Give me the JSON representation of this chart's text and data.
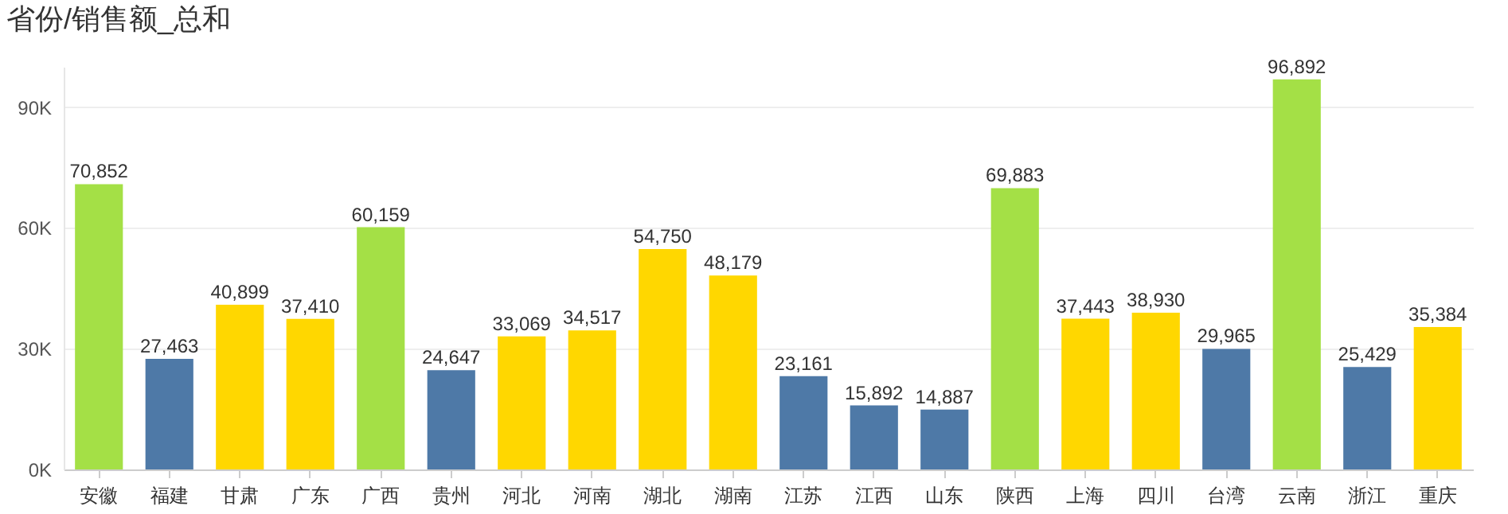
{
  "chart_data": {
    "type": "bar",
    "title": "省份/销售额_总和",
    "categories": [
      "安徽",
      "福建",
      "甘肃",
      "广东",
      "广西",
      "贵州",
      "河北",
      "河南",
      "湖北",
      "湖南",
      "江苏",
      "江西",
      "山东",
      "陕西",
      "上海",
      "四川",
      "台湾",
      "云南",
      "浙江",
      "重庆"
    ],
    "values": [
      70852,
      27463,
      40899,
      37410,
      60159,
      24647,
      33069,
      34517,
      54750,
      48179,
      23161,
      15892,
      14887,
      69883,
      37443,
      38930,
      29965,
      96892,
      25429,
      35384
    ],
    "colors": [
      "#a4e046",
      "#4e79a7",
      "#ffd700",
      "#ffd700",
      "#a4e046",
      "#4e79a7",
      "#ffd700",
      "#ffd700",
      "#ffd700",
      "#ffd700",
      "#4e79a7",
      "#4e79a7",
      "#4e79a7",
      "#a4e046",
      "#ffd700",
      "#ffd700",
      "#4e79a7",
      "#a4e046",
      "#4e79a7",
      "#ffd700"
    ],
    "ylim": [
      0,
      100000
    ],
    "yticks": [
      {
        "value": 0,
        "label": "0K"
      },
      {
        "value": 30000,
        "label": "30K"
      },
      {
        "value": 60000,
        "label": "60K"
      },
      {
        "value": 90000,
        "label": "90K"
      }
    ],
    "grid": "y",
    "value_labels": [
      "70,852",
      "27,463",
      "40,899",
      "37,410",
      "60,159",
      "24,647",
      "33,069",
      "34,517",
      "54,750",
      "48,179",
      "23,161",
      "15,892",
      "14,887",
      "69,883",
      "37,443",
      "38,930",
      "29,965",
      "96,892",
      "25,429",
      "35,384"
    ]
  }
}
